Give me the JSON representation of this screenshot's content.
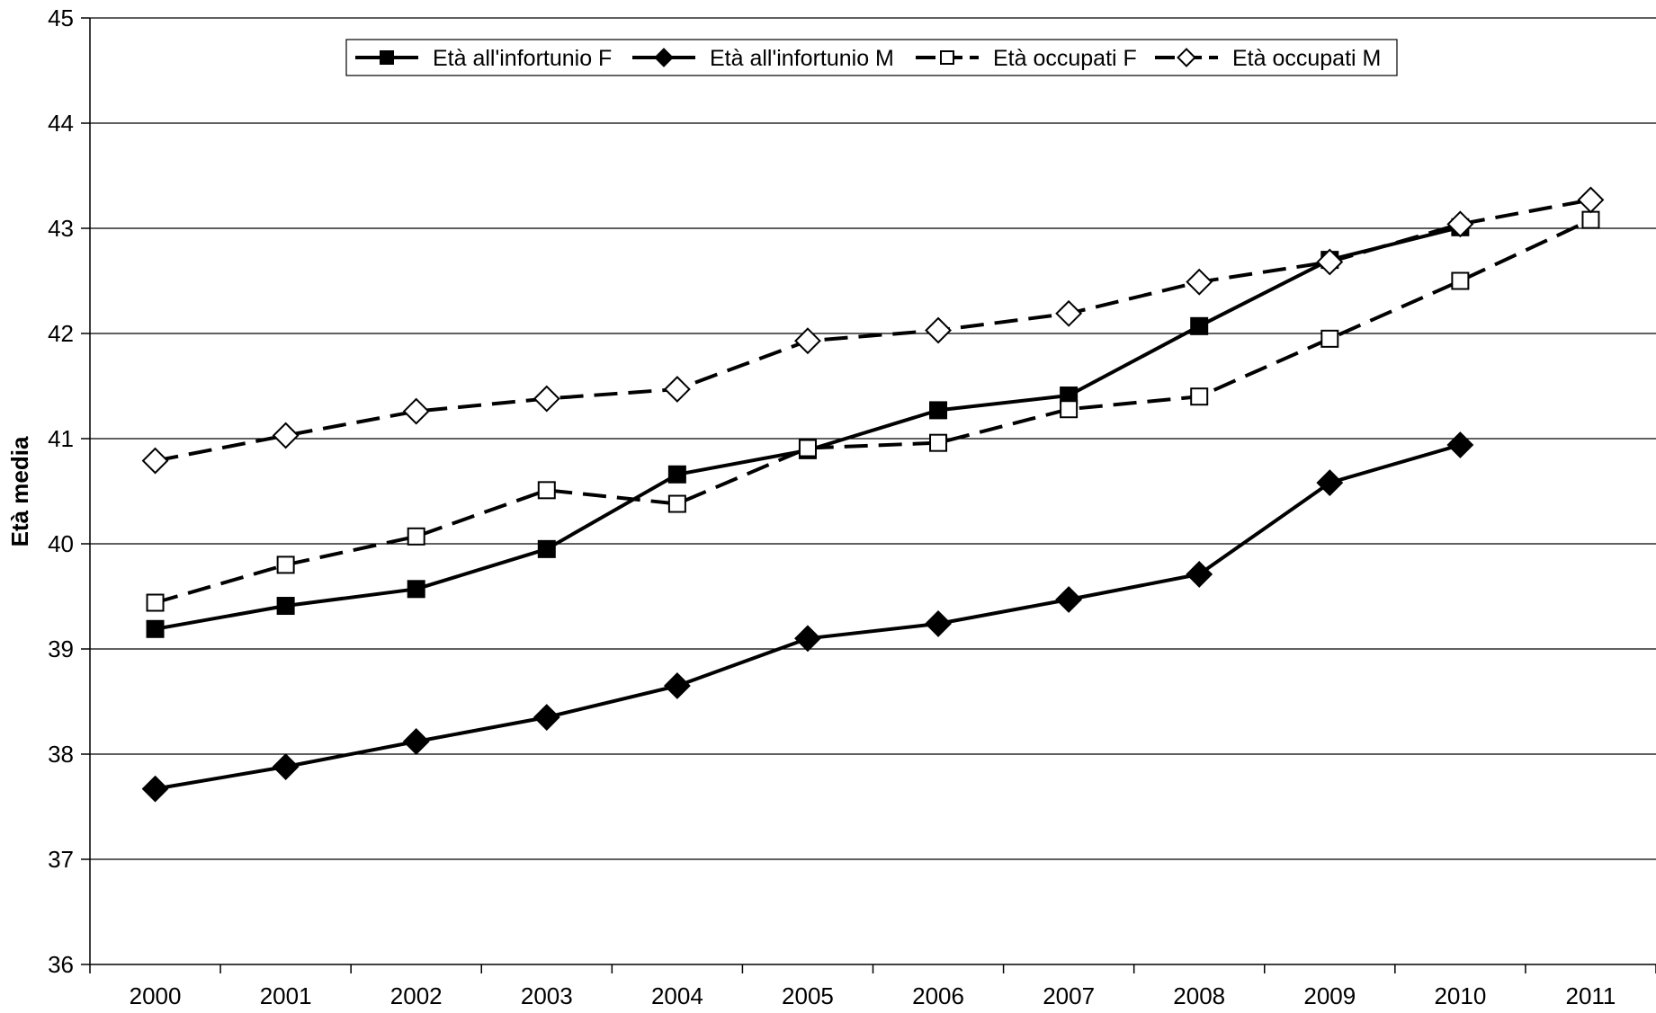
{
  "chart_data": {
    "type": "line",
    "title": "",
    "xlabel": "",
    "ylabel": "Età media",
    "categories": [
      "2000",
      "2001",
      "2002",
      "2003",
      "2004",
      "2005",
      "2006",
      "2007",
      "2008",
      "2009",
      "2010",
      "2011"
    ],
    "ylim": [
      36,
      45
    ],
    "yticks": [
      "36",
      "37",
      "38",
      "39",
      "40",
      "41",
      "42",
      "43",
      "44",
      "45"
    ],
    "grid": "horizontal",
    "legend_position": "top",
    "series": [
      {
        "name": "Età all'infortunio F",
        "marker": "filled-square",
        "line": "solid",
        "values": [
          39.19,
          39.41,
          39.57,
          39.95,
          40.66,
          40.89,
          41.27,
          41.41,
          42.07,
          42.7,
          43.01,
          null
        ]
      },
      {
        "name": "Età all'infortunio M",
        "marker": "filled-diamond",
        "line": "solid",
        "values": [
          37.67,
          37.88,
          38.12,
          38.35,
          38.65,
          39.1,
          39.24,
          39.47,
          39.71,
          40.58,
          40.94,
          null
        ]
      },
      {
        "name": "Età occupati F",
        "marker": "open-square",
        "line": "dashed",
        "values": [
          39.44,
          39.8,
          40.07,
          40.51,
          40.38,
          40.91,
          40.96,
          41.28,
          41.4,
          41.95,
          42.5,
          43.08
        ]
      },
      {
        "name": "Età occupati M",
        "marker": "open-diamond",
        "line": "dashed",
        "values": [
          40.79,
          41.03,
          41.26,
          41.38,
          41.47,
          41.93,
          42.03,
          42.19,
          42.49,
          42.68,
          43.04,
          43.27
        ]
      }
    ]
  }
}
